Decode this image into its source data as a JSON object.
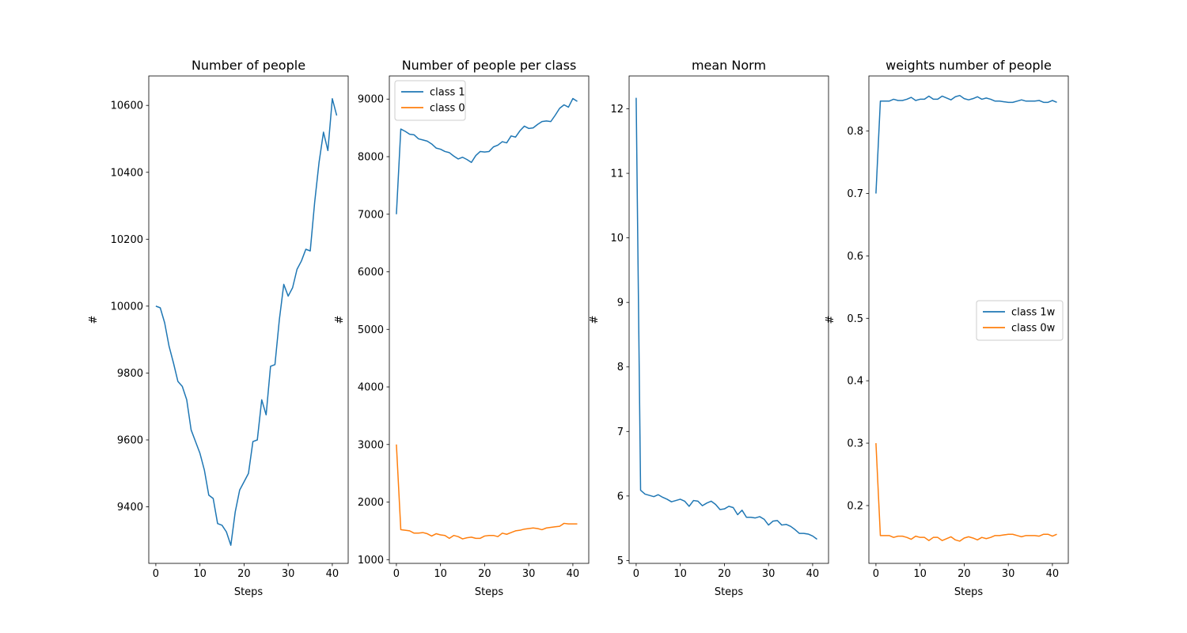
{
  "chart_data": [
    {
      "type": "line",
      "title": "Number of people",
      "xlabel": "Steps",
      "ylabel": "#",
      "xlim": [
        -1.6,
        43.6
      ],
      "ylim": [
        9231,
        10688
      ],
      "xticks": [
        0,
        10,
        20,
        30,
        40
      ],
      "yticks": [
        9400,
        9600,
        9800,
        10000,
        10200,
        10400,
        10600
      ],
      "legend": null,
      "series": [
        {
          "name": "",
          "color": "#1f77b4",
          "x": [
            0,
            1,
            2,
            3,
            4,
            5,
            6,
            7,
            8,
            9,
            10,
            11,
            12,
            13,
            14,
            15,
            16,
            17,
            18,
            19,
            20,
            21,
            22,
            23,
            24,
            25,
            26,
            27,
            28,
            29,
            30,
            31,
            32,
            33,
            34,
            35,
            36,
            37,
            38,
            39,
            40,
            41
          ],
          "y": [
            10000,
            9995,
            9950,
            9880,
            9830,
            9775,
            9760,
            9720,
            9630,
            9595,
            9560,
            9510,
            9435,
            9425,
            9350,
            9345,
            9325,
            9285,
            9385,
            9450,
            9475,
            9500,
            9595,
            9600,
            9720,
            9675,
            9820,
            9825,
            9960,
            10065,
            10030,
            10055,
            10110,
            10135,
            10170,
            10165,
            10310,
            10430,
            10520,
            10465,
            10620,
            10570
          ]
        }
      ]
    },
    {
      "type": "line",
      "title": "Number of people per class",
      "xlabel": "Steps",
      "ylabel": "#",
      "xlim": [
        -1.6,
        43.6
      ],
      "ylim": [
        935,
        9402
      ],
      "xticks": [
        0,
        10,
        20,
        30,
        40
      ],
      "yticks": [
        1000,
        2000,
        3000,
        4000,
        5000,
        6000,
        7000,
        8000,
        9000
      ],
      "legend": "top-left",
      "series": [
        {
          "name": "class 1",
          "color": "#1f77b4",
          "x": [
            0,
            1,
            2,
            3,
            4,
            5,
            6,
            7,
            8,
            9,
            10,
            11,
            12,
            13,
            14,
            15,
            16,
            17,
            18,
            19,
            20,
            21,
            22,
            23,
            24,
            25,
            26,
            27,
            28,
            29,
            30,
            31,
            32,
            33,
            34,
            35,
            36,
            37,
            38,
            39,
            40,
            41
          ],
          "y": [
            7000,
            8480,
            8440,
            8390,
            8380,
            8310,
            8290,
            8270,
            8220,
            8150,
            8130,
            8090,
            8070,
            8010,
            7960,
            7990,
            7950,
            7900,
            8020,
            8090,
            8080,
            8090,
            8170,
            8200,
            8260,
            8240,
            8360,
            8340,
            8450,
            8530,
            8490,
            8500,
            8560,
            8610,
            8620,
            8610,
            8720,
            8840,
            8900,
            8860,
            9010,
            8960
          ]
        },
        {
          "name": "class 0",
          "color": "#ff7f0e",
          "x": [
            0,
            1,
            2,
            3,
            4,
            5,
            6,
            7,
            8,
            9,
            10,
            11,
            12,
            13,
            14,
            15,
            16,
            17,
            18,
            19,
            20,
            21,
            22,
            23,
            24,
            25,
            26,
            27,
            28,
            29,
            30,
            31,
            32,
            33,
            34,
            35,
            36,
            37,
            38,
            39,
            40,
            41
          ],
          "y": [
            3000,
            1520,
            1510,
            1500,
            1460,
            1460,
            1470,
            1450,
            1410,
            1450,
            1430,
            1420,
            1370,
            1420,
            1400,
            1360,
            1380,
            1390,
            1370,
            1370,
            1410,
            1420,
            1420,
            1400,
            1460,
            1440,
            1470,
            1500,
            1510,
            1530,
            1540,
            1550,
            1540,
            1520,
            1550,
            1560,
            1570,
            1580,
            1630,
            1620,
            1620,
            1620
          ]
        }
      ]
    },
    {
      "type": "line",
      "title": "mean Norm",
      "xlabel": "Steps",
      "ylabel": "#",
      "xlim": [
        -1.6,
        43.6
      ],
      "ylim": [
        4.956,
        12.509
      ],
      "xticks": [
        0,
        10,
        20,
        30,
        40
      ],
      "yticks": [
        5,
        6,
        7,
        8,
        9,
        10,
        11,
        12
      ],
      "legend": null,
      "series": [
        {
          "name": "",
          "color": "#1f77b4",
          "x": [
            0,
            1,
            2,
            3,
            4,
            5,
            6,
            7,
            8,
            9,
            10,
            11,
            12,
            13,
            14,
            15,
            16,
            17,
            18,
            19,
            20,
            21,
            22,
            23,
            24,
            25,
            26,
            27,
            28,
            29,
            30,
            31,
            32,
            33,
            34,
            35,
            36,
            37,
            38,
            39,
            40,
            41
          ],
          "y": [
            12.17,
            6.09,
            6.03,
            6.01,
            5.99,
            6.02,
            5.98,
            5.95,
            5.91,
            5.93,
            5.95,
            5.92,
            5.84,
            5.93,
            5.92,
            5.85,
            5.89,
            5.92,
            5.87,
            5.79,
            5.8,
            5.84,
            5.82,
            5.71,
            5.78,
            5.67,
            5.67,
            5.66,
            5.68,
            5.64,
            5.55,
            5.61,
            5.62,
            5.55,
            5.56,
            5.53,
            5.48,
            5.42,
            5.42,
            5.41,
            5.38,
            5.33
          ]
        }
      ]
    },
    {
      "type": "line",
      "title": "weights number of people",
      "xlabel": "Steps",
      "ylabel": "#",
      "xlim": [
        -1.6,
        43.6
      ],
      "ylim": [
        0.1074,
        0.8883
      ],
      "xticks": [
        0,
        10,
        20,
        30,
        40
      ],
      "yticks": [
        0.2,
        0.3,
        0.4,
        0.5,
        0.6,
        0.7,
        0.8
      ],
      "legend": "center-right",
      "series": [
        {
          "name": "class 1w",
          "color": "#1f77b4",
          "x": [
            0,
            1,
            2,
            3,
            4,
            5,
            6,
            7,
            8,
            9,
            10,
            11,
            12,
            13,
            14,
            15,
            16,
            17,
            18,
            19,
            20,
            21,
            22,
            23,
            24,
            25,
            26,
            27,
            28,
            29,
            30,
            31,
            32,
            33,
            34,
            35,
            36,
            37,
            38,
            39,
            40,
            41
          ],
          "y": [
            0.7,
            0.848,
            0.848,
            0.848,
            0.851,
            0.849,
            0.849,
            0.851,
            0.854,
            0.849,
            0.851,
            0.851,
            0.856,
            0.851,
            0.851,
            0.856,
            0.853,
            0.85,
            0.855,
            0.857,
            0.852,
            0.85,
            0.852,
            0.855,
            0.851,
            0.853,
            0.851,
            0.848,
            0.848,
            0.847,
            0.846,
            0.846,
            0.848,
            0.85,
            0.848,
            0.848,
            0.848,
            0.849,
            0.846,
            0.846,
            0.849,
            0.846
          ]
        },
        {
          "name": "class 0w",
          "color": "#ff7f0e",
          "x": [
            0,
            1,
            2,
            3,
            4,
            5,
            6,
            7,
            8,
            9,
            10,
            11,
            12,
            13,
            14,
            15,
            16,
            17,
            18,
            19,
            20,
            21,
            22,
            23,
            24,
            25,
            26,
            27,
            28,
            29,
            30,
            31,
            32,
            33,
            34,
            35,
            36,
            37,
            38,
            39,
            40,
            41
          ],
          "y": [
            0.3,
            0.152,
            0.152,
            0.152,
            0.149,
            0.151,
            0.151,
            0.149,
            0.146,
            0.151,
            0.149,
            0.149,
            0.144,
            0.149,
            0.149,
            0.144,
            0.147,
            0.15,
            0.145,
            0.143,
            0.148,
            0.15,
            0.148,
            0.145,
            0.149,
            0.147,
            0.149,
            0.152,
            0.152,
            0.153,
            0.154,
            0.154,
            0.152,
            0.15,
            0.152,
            0.152,
            0.152,
            0.151,
            0.154,
            0.154,
            0.151,
            0.154
          ]
        }
      ]
    }
  ]
}
